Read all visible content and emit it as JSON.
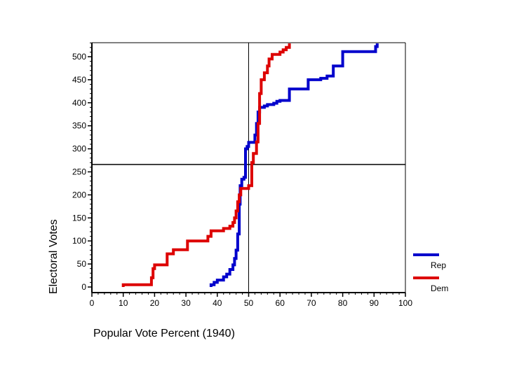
{
  "chart_data": {
    "type": "line",
    "title": "",
    "xlabel": "Popular Vote Percent  (1940)",
    "ylabel": "Electoral Votes",
    "xlim": [
      0,
      100
    ],
    "ylim": [
      0,
      530
    ],
    "x_ticks": [
      0,
      10,
      20,
      30,
      40,
      50,
      60,
      70,
      80,
      90,
      100
    ],
    "y_ticks": [
      0,
      50,
      100,
      150,
      200,
      250,
      300,
      350,
      400,
      450,
      500
    ],
    "reference_lines": {
      "vertical_x": 50,
      "horizontal_y": 266
    },
    "grid": false,
    "legend_position": "right",
    "series": [
      {
        "name": "Rep",
        "color": "#0000cc",
        "points": [
          [
            38,
            0
          ],
          [
            38,
            5
          ],
          [
            39,
            5
          ],
          [
            39,
            10
          ],
          [
            40,
            10
          ],
          [
            40,
            15
          ],
          [
            42,
            15
          ],
          [
            42,
            22
          ],
          [
            43,
            22
          ],
          [
            43,
            28
          ],
          [
            44,
            28
          ],
          [
            44,
            38
          ],
          [
            45,
            38
          ],
          [
            45,
            48
          ],
          [
            45.5,
            48
          ],
          [
            45.5,
            62
          ],
          [
            46,
            62
          ],
          [
            46,
            80
          ],
          [
            46.5,
            80
          ],
          [
            46.5,
            115
          ],
          [
            47,
            115
          ],
          [
            47,
            180
          ],
          [
            47.3,
            180
          ],
          [
            47.3,
            220
          ],
          [
            47.8,
            220
          ],
          [
            47.8,
            234
          ],
          [
            48.5,
            234
          ],
          [
            48.5,
            238
          ],
          [
            49,
            238
          ],
          [
            49,
            300
          ],
          [
            49.5,
            300
          ],
          [
            49.5,
            305
          ],
          [
            50,
            305
          ],
          [
            50,
            314
          ],
          [
            52,
            314
          ],
          [
            52,
            330
          ],
          [
            52.5,
            330
          ],
          [
            52.5,
            355
          ],
          [
            53,
            355
          ],
          [
            53,
            380
          ],
          [
            53.5,
            380
          ],
          [
            53.5,
            390
          ],
          [
            55,
            390
          ],
          [
            55,
            393
          ],
          [
            56,
            393
          ],
          [
            56,
            396
          ],
          [
            58,
            396
          ],
          [
            58,
            399
          ],
          [
            59,
            399
          ],
          [
            59,
            403
          ],
          [
            60,
            403
          ],
          [
            60,
            405
          ],
          [
            63,
            405
          ],
          [
            63,
            430
          ],
          [
            69,
            430
          ],
          [
            69,
            450
          ],
          [
            73,
            450
          ],
          [
            73,
            453
          ],
          [
            75,
            453
          ],
          [
            75,
            458
          ],
          [
            77,
            458
          ],
          [
            77,
            480
          ],
          [
            80,
            480
          ],
          [
            80,
            511
          ],
          [
            90.5,
            511
          ],
          [
            90.5,
            522
          ],
          [
            91,
            522
          ],
          [
            91,
            531
          ]
        ]
      },
      {
        "name": "Dem",
        "color": "#dd0000",
        "points": [
          [
            10,
            0
          ],
          [
            10,
            5
          ],
          [
            19,
            5
          ],
          [
            19,
            20
          ],
          [
            19.5,
            20
          ],
          [
            19.5,
            40
          ],
          [
            20,
            40
          ],
          [
            20,
            48
          ],
          [
            24,
            48
          ],
          [
            24,
            72
          ],
          [
            26,
            72
          ],
          [
            26,
            81
          ],
          [
            30.5,
            81
          ],
          [
            30.5,
            100
          ],
          [
            37,
            100
          ],
          [
            37,
            110
          ],
          [
            38,
            110
          ],
          [
            38,
            122
          ],
          [
            42,
            122
          ],
          [
            42,
            127
          ],
          [
            44,
            127
          ],
          [
            44,
            132
          ],
          [
            45,
            132
          ],
          [
            45,
            140
          ],
          [
            45.5,
            140
          ],
          [
            45.5,
            150
          ],
          [
            46,
            150
          ],
          [
            46,
            165
          ],
          [
            46.5,
            165
          ],
          [
            46.5,
            185
          ],
          [
            47,
            185
          ],
          [
            47,
            200
          ],
          [
            47.5,
            200
          ],
          [
            47.5,
            214
          ],
          [
            50,
            214
          ],
          [
            50,
            220
          ],
          [
            51,
            220
          ],
          [
            51,
            270
          ],
          [
            51.5,
            270
          ],
          [
            51.5,
            290
          ],
          [
            52.5,
            290
          ],
          [
            52.5,
            315
          ],
          [
            53,
            315
          ],
          [
            53,
            355
          ],
          [
            53.5,
            355
          ],
          [
            53.5,
            420
          ],
          [
            54,
            420
          ],
          [
            54,
            450
          ],
          [
            55,
            450
          ],
          [
            55,
            465
          ],
          [
            56,
            465
          ],
          [
            56,
            480
          ],
          [
            56.5,
            480
          ],
          [
            56.5,
            495
          ],
          [
            57.5,
            495
          ],
          [
            57.5,
            505
          ],
          [
            60,
            505
          ],
          [
            60,
            510
          ],
          [
            61,
            510
          ],
          [
            61,
            515
          ],
          [
            62,
            515
          ],
          [
            62,
            520
          ],
          [
            63,
            520
          ],
          [
            63,
            531
          ]
        ]
      }
    ]
  }
}
